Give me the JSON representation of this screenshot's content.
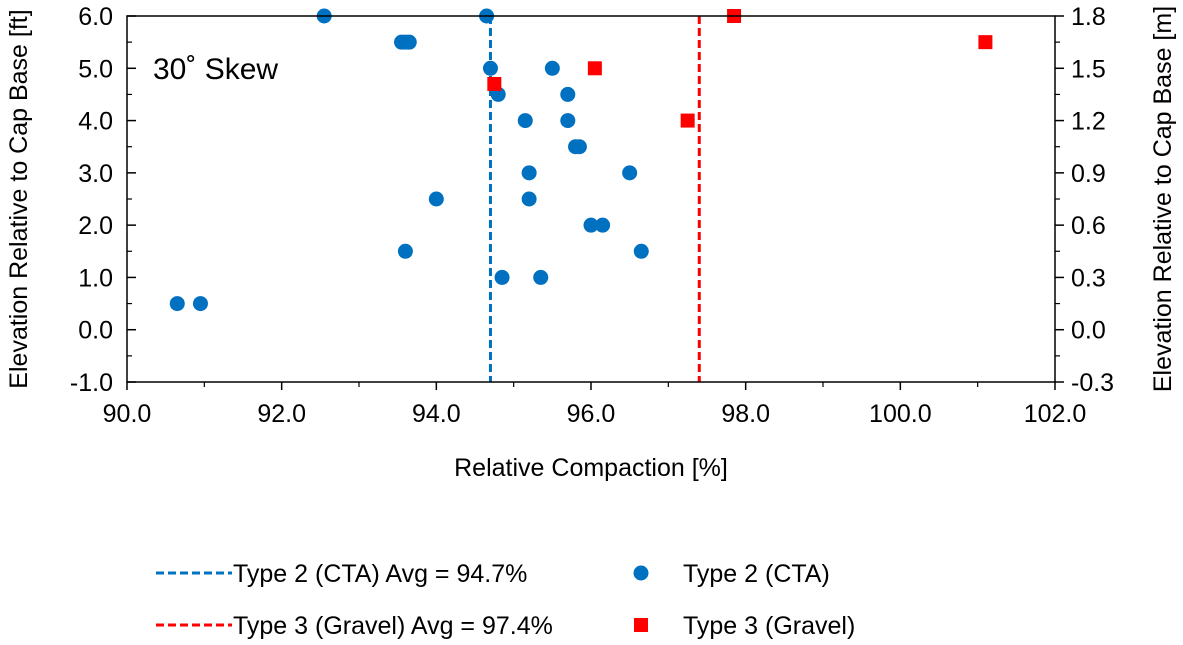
{
  "chart_data": {
    "type": "scatter",
    "annotation": "30˚ Skew",
    "xlabel": "Relative Compaction [%]",
    "ylabel": "Elevation Relative to Cap Base [ft]",
    "y2label": "Elevation Relative to Cap Base [m]",
    "xlim": [
      90.0,
      102.0
    ],
    "ylim": [
      -1.0,
      6.0
    ],
    "y2lim": [
      -0.3,
      1.8
    ],
    "x_ticks": [
      "90.0",
      "92.0",
      "94.0",
      "96.0",
      "98.0",
      "100.0",
      "102.0"
    ],
    "y_ticks": [
      "-1.0",
      "0.0",
      "1.0",
      "2.0",
      "3.0",
      "4.0",
      "5.0",
      "6.0"
    ],
    "y2_ticks": [
      "-0.3",
      "0.0",
      "0.3",
      "0.6",
      "0.9",
      "1.2",
      "1.5",
      "1.8"
    ],
    "grid": false,
    "legend_position": "bottom",
    "series": [
      {
        "name": "Type 2 (CTA)",
        "marker": "circle",
        "color": "#0070C0",
        "points": [
          [
            92.55,
            6.0
          ],
          [
            94.65,
            6.0
          ],
          [
            93.55,
            5.5
          ],
          [
            93.6,
            5.5
          ],
          [
            93.65,
            5.5
          ],
          [
            94.7,
            5.0
          ],
          [
            95.5,
            5.0
          ],
          [
            94.8,
            4.5
          ],
          [
            95.7,
            4.5
          ],
          [
            95.15,
            4.0
          ],
          [
            95.7,
            4.0
          ],
          [
            95.8,
            3.5
          ],
          [
            95.85,
            3.5
          ],
          [
            95.2,
            3.0
          ],
          [
            96.5,
            3.0
          ],
          [
            94.0,
            2.5
          ],
          [
            95.2,
            2.5
          ],
          [
            96.0,
            2.0
          ],
          [
            96.15,
            2.0
          ],
          [
            93.6,
            1.5
          ],
          [
            96.65,
            1.5
          ],
          [
            94.85,
            1.0
          ],
          [
            95.35,
            1.0
          ],
          [
            90.65,
            0.5
          ],
          [
            90.95,
            0.5
          ]
        ]
      },
      {
        "name": "Type 3 (Gravel)",
        "marker": "square",
        "color": "#FF0000",
        "points": [
          [
            97.85,
            6.0
          ],
          [
            101.1,
            5.5
          ],
          [
            96.05,
            5.0
          ],
          [
            94.75,
            4.7
          ],
          [
            97.25,
            4.0
          ]
        ]
      }
    ],
    "average_lines": [
      {
        "name": "Type 2 (CTA) Avg = 94.7%",
        "x": 94.7,
        "color": "#0070C0"
      },
      {
        "name": "Type 3 (Gravel) Avg = 97.4%",
        "x": 97.4,
        "color": "#FF0000"
      }
    ]
  }
}
